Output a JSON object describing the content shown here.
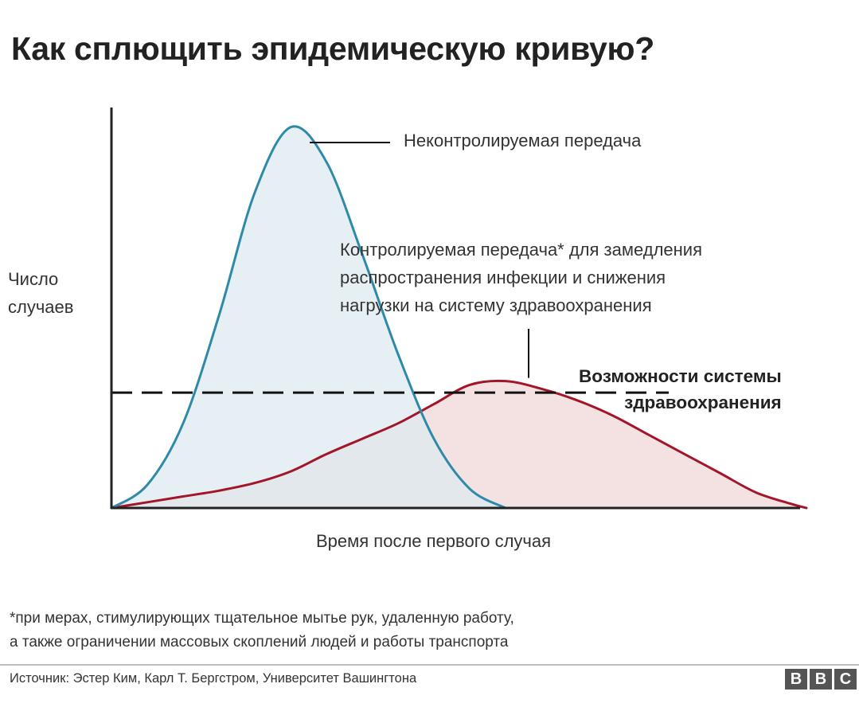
{
  "chart_data": {
    "type": "area",
    "title": "Как сплющить эпидемическую кривую?",
    "xlabel": "Время после первого случая",
    "ylabel": [
      "Число",
      "случаев"
    ],
    "xlim": [
      0,
      100
    ],
    "ylim": [
      0,
      100
    ],
    "x": [
      0,
      5,
      10,
      15,
      20,
      25,
      30,
      35,
      40,
      45,
      50,
      55,
      60,
      65,
      70,
      75,
      80,
      85,
      90,
      95,
      97
    ],
    "series": [
      {
        "name": "Неконтролируемая передача",
        "color": "#2e8aa8",
        "fill": "#dde9f0",
        "values": [
          0,
          6,
          22,
          50,
          82,
          99,
          90,
          66,
          40,
          18,
          5,
          0,
          null,
          null,
          null,
          null,
          null,
          null,
          null,
          null,
          null
        ]
      },
      {
        "name": "Контролируемая передача* для замедления распространения инфекции и снижения нагрузки на систему здравоохранения",
        "color": "#a3162a",
        "fill": "#f4e2e3",
        "values": [
          0,
          1.5,
          3,
          4.5,
          6.5,
          9.5,
          14,
          18,
          22,
          27,
          32,
          33,
          31,
          28,
          24,
          19,
          14,
          9,
          4,
          1,
          0
        ]
      }
    ],
    "threshold": {
      "label": "Возможности системы здравоохранения",
      "value": 30,
      "style": "dashed"
    },
    "grid": false,
    "legend": "none"
  },
  "annotations": {
    "top": "Неконтролируемая передача",
    "mid": [
      "Контролируемая передача* для замедления",
      "распространения инфекции и снижения",
      "нагрузки на систему здравоохранения"
    ],
    "capacity": [
      "Возможности системы",
      "здравоохранения"
    ]
  },
  "footnote": [
    "*при мерах, стимулирующих тщательное мытье рук, удаленную работу,",
    "а также ограничении массовых скоплений людей и работы транспорта"
  ],
  "source": "Источник: Эстер Ким, Карл Т. Бергстром, Университет Вашингтона",
  "brand": [
    "B",
    "B",
    "C"
  ],
  "colors": {
    "uncontrolled": "#2e8aa8",
    "controlled": "#a3162a",
    "axis": "#222222"
  }
}
